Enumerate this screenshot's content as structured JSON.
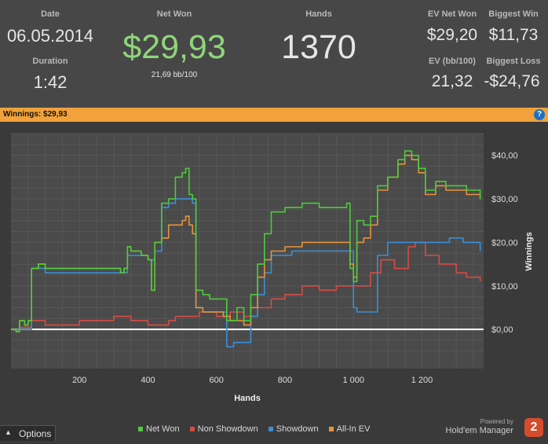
{
  "stats": {
    "date_label": "Date",
    "date_value": "06.05.2014",
    "duration_label": "Duration",
    "duration_value": "1:42",
    "net_won_label": "Net Won",
    "net_won_value": "$29,93",
    "net_won_sub": "21,69 bb/100",
    "hands_label": "Hands",
    "hands_value": "1370",
    "ev_net_won_label": "EV Net Won",
    "ev_net_won_value": "$29,20",
    "biggest_win_label": "Biggest Win",
    "biggest_win_value": "$11,73",
    "ev_bb_label": "EV (bb/100)",
    "ev_bb_value": "21,32",
    "biggest_loss_label": "Biggest Loss",
    "biggest_loss_value": "-$24,76"
  },
  "header_bar": {
    "title": "Winnings: $29,93",
    "help_icon": "?"
  },
  "colors": {
    "net_won": "#4ccc3a",
    "non_showdown": "#d94a44",
    "showdown": "#3a8fd8",
    "all_in_ev": "#e8933a",
    "accent_bar": "#f1a23a",
    "net_won_text": "#8fd67a"
  },
  "chart_data": {
    "type": "line",
    "xlabel": "Hands",
    "ylabel": "Winnings",
    "xlim": [
      0,
      1380
    ],
    "ylim": [
      -9,
      45
    ],
    "x_ticks": [
      200,
      400,
      600,
      800,
      1000,
      1200
    ],
    "x_tick_labels": [
      "200",
      "400",
      "600",
      "800",
      "1 000",
      "1 200"
    ],
    "y_ticks": [
      0,
      10,
      20,
      30,
      40
    ],
    "y_tick_labels": [
      "$0,00",
      "$10,00",
      "$20,00",
      "$30,00",
      "$40,00"
    ],
    "grid": true,
    "legend_position": "bottom",
    "series": [
      {
        "name": "Net Won",
        "color": "#4ccc3a",
        "points": [
          [
            0,
            0
          ],
          [
            15,
            -0.5
          ],
          [
            25,
            2
          ],
          [
            40,
            1
          ],
          [
            50,
            2
          ],
          [
            60,
            14
          ],
          [
            80,
            15
          ],
          [
            100,
            14
          ],
          [
            150,
            14
          ],
          [
            200,
            14
          ],
          [
            250,
            14
          ],
          [
            300,
            14
          ],
          [
            320,
            13
          ],
          [
            330,
            14
          ],
          [
            340,
            19
          ],
          [
            350,
            18
          ],
          [
            380,
            17
          ],
          [
            400,
            16
          ],
          [
            410,
            9
          ],
          [
            420,
            20
          ],
          [
            440,
            29
          ],
          [
            460,
            30
          ],
          [
            480,
            35
          ],
          [
            500,
            36
          ],
          [
            510,
            37
          ],
          [
            520,
            31
          ],
          [
            530,
            30
          ],
          [
            540,
            9
          ],
          [
            560,
            8
          ],
          [
            580,
            7
          ],
          [
            600,
            7
          ],
          [
            620,
            7
          ],
          [
            630,
            2
          ],
          [
            650,
            2
          ],
          [
            660,
            5
          ],
          [
            680,
            2
          ],
          [
            700,
            8
          ],
          [
            720,
            15
          ],
          [
            740,
            22
          ],
          [
            760,
            27
          ],
          [
            800,
            28
          ],
          [
            850,
            29
          ],
          [
            900,
            28
          ],
          [
            950,
            28
          ],
          [
            980,
            29
          ],
          [
            990,
            14
          ],
          [
            1000,
            11
          ],
          [
            1010,
            25
          ],
          [
            1030,
            24
          ],
          [
            1050,
            26
          ],
          [
            1070,
            33
          ],
          [
            1100,
            35
          ],
          [
            1130,
            39
          ],
          [
            1150,
            41
          ],
          [
            1170,
            40
          ],
          [
            1190,
            37
          ],
          [
            1210,
            32
          ],
          [
            1240,
            34
          ],
          [
            1270,
            33
          ],
          [
            1300,
            33
          ],
          [
            1330,
            32
          ],
          [
            1360,
            32
          ],
          [
            1370,
            29.9
          ]
        ]
      },
      {
        "name": "Non Showdown",
        "color": "#d94a44",
        "points": [
          [
            0,
            0
          ],
          [
            30,
            0.5
          ],
          [
            60,
            2
          ],
          [
            100,
            1
          ],
          [
            150,
            1
          ],
          [
            200,
            2
          ],
          [
            250,
            2
          ],
          [
            300,
            3
          ],
          [
            350,
            2
          ],
          [
            400,
            1
          ],
          [
            430,
            1
          ],
          [
            460,
            2
          ],
          [
            480,
            3
          ],
          [
            520,
            3
          ],
          [
            550,
            4
          ],
          [
            600,
            3
          ],
          [
            640,
            4
          ],
          [
            680,
            3
          ],
          [
            720,
            5
          ],
          [
            760,
            7
          ],
          [
            800,
            8
          ],
          [
            850,
            10
          ],
          [
            900,
            9
          ],
          [
            950,
            10
          ],
          [
            1000,
            10
          ],
          [
            1050,
            13
          ],
          [
            1080,
            16
          ],
          [
            1120,
            14
          ],
          [
            1160,
            19
          ],
          [
            1180,
            20
          ],
          [
            1210,
            17
          ],
          [
            1250,
            15
          ],
          [
            1300,
            13
          ],
          [
            1330,
            12
          ],
          [
            1370,
            11
          ]
        ]
      },
      {
        "name": "Showdown",
        "color": "#3a8fd8",
        "points": [
          [
            0,
            0
          ],
          [
            50,
            0
          ],
          [
            60,
            14
          ],
          [
            100,
            13
          ],
          [
            150,
            13
          ],
          [
            200,
            13
          ],
          [
            250,
            13
          ],
          [
            300,
            13
          ],
          [
            320,
            13
          ],
          [
            340,
            17
          ],
          [
            400,
            16
          ],
          [
            420,
            18
          ],
          [
            440,
            28
          ],
          [
            460,
            29
          ],
          [
            480,
            30
          ],
          [
            500,
            30
          ],
          [
            520,
            30
          ],
          [
            530,
            29
          ],
          [
            540,
            5
          ],
          [
            560,
            4
          ],
          [
            600,
            4
          ],
          [
            630,
            -4
          ],
          [
            650,
            -3
          ],
          [
            680,
            -3
          ],
          [
            700,
            3
          ],
          [
            720,
            8
          ],
          [
            740,
            13
          ],
          [
            760,
            17
          ],
          [
            780,
            17
          ],
          [
            820,
            18
          ],
          [
            860,
            18
          ],
          [
            900,
            18
          ],
          [
            950,
            18
          ],
          [
            1000,
            5
          ],
          [
            1010,
            4
          ],
          [
            1040,
            4
          ],
          [
            1070,
            17
          ],
          [
            1100,
            20
          ],
          [
            1130,
            20
          ],
          [
            1160,
            20
          ],
          [
            1200,
            20
          ],
          [
            1240,
            20
          ],
          [
            1280,
            21
          ],
          [
            1320,
            20
          ],
          [
            1360,
            20
          ],
          [
            1370,
            18
          ]
        ]
      },
      {
        "name": "All-In EV",
        "color": "#e8933a",
        "points": [
          [
            0,
            0
          ],
          [
            15,
            -0.5
          ],
          [
            25,
            2
          ],
          [
            40,
            1
          ],
          [
            50,
            2
          ],
          [
            60,
            14
          ],
          [
            80,
            15
          ],
          [
            100,
            14
          ],
          [
            150,
            14
          ],
          [
            200,
            14
          ],
          [
            250,
            14
          ],
          [
            300,
            14
          ],
          [
            320,
            13
          ],
          [
            330,
            14
          ],
          [
            340,
            19
          ],
          [
            350,
            18
          ],
          [
            380,
            17
          ],
          [
            400,
            16
          ],
          [
            410,
            9
          ],
          [
            420,
            20
          ],
          [
            440,
            21
          ],
          [
            460,
            24
          ],
          [
            480,
            24
          ],
          [
            500,
            25
          ],
          [
            510,
            26
          ],
          [
            520,
            24
          ],
          [
            530,
            22
          ],
          [
            540,
            5
          ],
          [
            560,
            4
          ],
          [
            600,
            4
          ],
          [
            620,
            3
          ],
          [
            640,
            2
          ],
          [
            660,
            2
          ],
          [
            680,
            1
          ],
          [
            700,
            5
          ],
          [
            720,
            12
          ],
          [
            740,
            16
          ],
          [
            760,
            18
          ],
          [
            800,
            19
          ],
          [
            850,
            20
          ],
          [
            900,
            20
          ],
          [
            950,
            20
          ],
          [
            980,
            20
          ],
          [
            990,
            15
          ],
          [
            1000,
            12
          ],
          [
            1010,
            20
          ],
          [
            1030,
            21
          ],
          [
            1050,
            24
          ],
          [
            1070,
            32
          ],
          [
            1100,
            35
          ],
          [
            1130,
            38
          ],
          [
            1150,
            40
          ],
          [
            1170,
            39
          ],
          [
            1190,
            36
          ],
          [
            1210,
            31
          ],
          [
            1240,
            33
          ],
          [
            1270,
            32
          ],
          [
            1300,
            32
          ],
          [
            1330,
            31
          ],
          [
            1360,
            31
          ],
          [
            1370,
            30
          ]
        ]
      }
    ]
  },
  "legend": {
    "items": [
      "Net Won",
      "Non Showdown",
      "Showdown",
      "All-In EV"
    ]
  },
  "footer": {
    "options_label": "Options",
    "brand_powered": "Powered by",
    "brand_name": "Hold'em Manager",
    "brand_version": "2"
  }
}
